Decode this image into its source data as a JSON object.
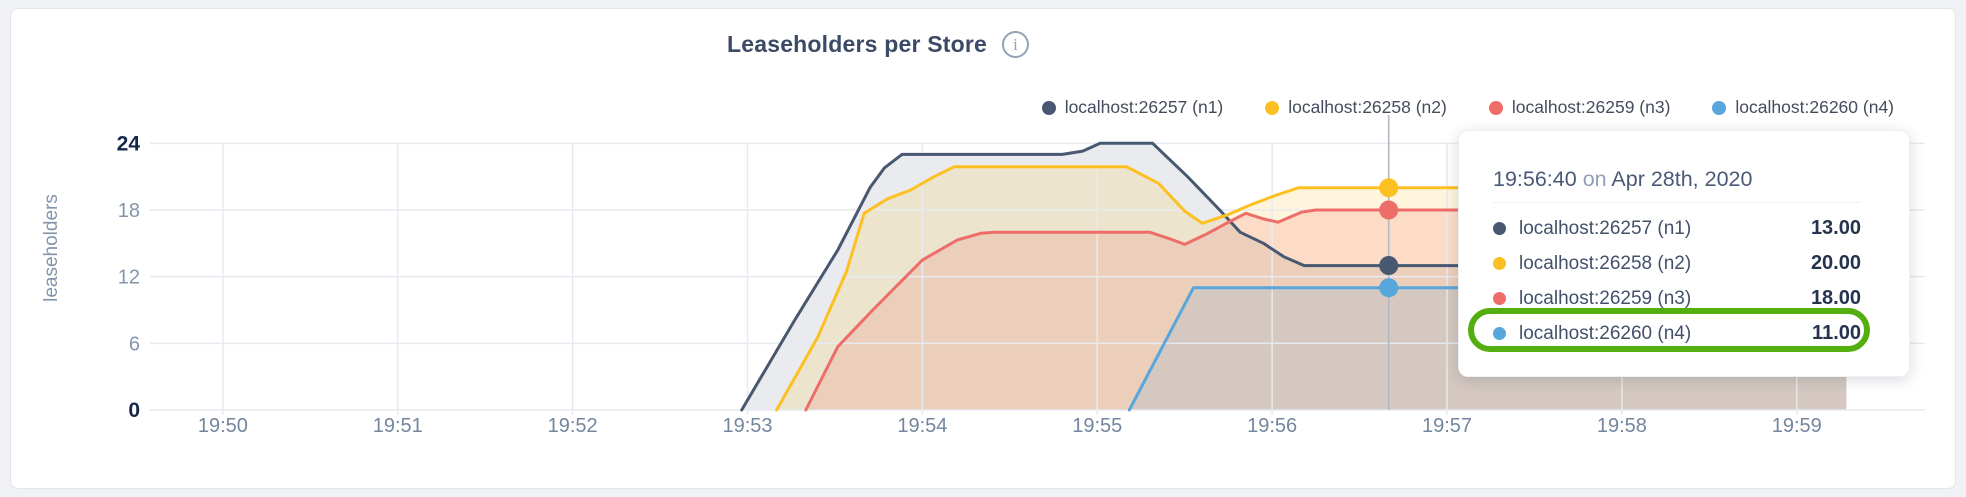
{
  "header": {
    "title": "Leaseholders per Store",
    "info_icon": "i"
  },
  "colors": {
    "n1": "#475870",
    "n2": "#fdc023",
    "n3": "#ee6d68",
    "n4": "#57a6dc",
    "grid": "#e7eaf0",
    "hover_line": "#b4b8c0",
    "highlight": "#54ae10"
  },
  "legend": [
    {
      "label": "localhost:26257 (n1)",
      "color": "#475870"
    },
    {
      "label": "localhost:26258 (n2)",
      "color": "#fdc023"
    },
    {
      "label": "localhost:26259 (n3)",
      "color": "#ee6d68"
    },
    {
      "label": "localhost:26260 (n4)",
      "color": "#57a6dc"
    }
  ],
  "tooltip": {
    "time": "19:56:40",
    "conjunction": "on",
    "date": "Apr 28th, 2020",
    "rows": [
      {
        "name": "localhost:26257 (n1)",
        "value": "13.00",
        "color": "#475870",
        "highlighted": false
      },
      {
        "name": "localhost:26258 (n2)",
        "value": "20.00",
        "color": "#fdc023",
        "highlighted": false
      },
      {
        "name": "localhost:26259 (n3)",
        "value": "18.00",
        "color": "#ee6d68",
        "highlighted": false
      },
      {
        "name": "localhost:26260 (n4)",
        "value": "11.00",
        "color": "#57a6dc",
        "highlighted": true
      }
    ]
  },
  "chart_data": {
    "type": "area",
    "title": "Leaseholders per Store",
    "ylabel": "leaseholders",
    "xlabel": "",
    "grid": true,
    "legend_position": "top-right",
    "x_unit": "seconds since 19:50:00",
    "x_domain": [
      -25,
      584
    ],
    "y_domain": [
      0,
      27
    ],
    "x_ticks": [
      {
        "t": 0,
        "label": "19:50"
      },
      {
        "t": 60,
        "label": "19:51"
      },
      {
        "t": 120,
        "label": "19:52"
      },
      {
        "t": 180,
        "label": "19:53"
      },
      {
        "t": 240,
        "label": "19:54"
      },
      {
        "t": 300,
        "label": "19:55"
      },
      {
        "t": 360,
        "label": "19:56"
      },
      {
        "t": 420,
        "label": "19:57"
      },
      {
        "t": 480,
        "label": "19:58"
      },
      {
        "t": 540,
        "label": "19:59"
      }
    ],
    "y_ticks": [
      {
        "v": 0,
        "label": "0",
        "strong": true
      },
      {
        "v": 6,
        "label": "6",
        "strong": false
      },
      {
        "v": 12,
        "label": "12",
        "strong": false
      },
      {
        "v": 18,
        "label": "18",
        "strong": false
      },
      {
        "v": 24,
        "label": "24",
        "strong": true
      }
    ],
    "hover": {
      "t": 400,
      "time_label": "19:56:40",
      "date_label": "Apr 28th, 2020"
    },
    "series": [
      {
        "name": "localhost:26257 (n1)",
        "color": "#475870",
        "fill_opacity": 0.12,
        "hover_value": 13,
        "points": [
          [
            178,
            0
          ],
          [
            196,
            8
          ],
          [
            211,
            14.4
          ],
          [
            222,
            20
          ],
          [
            227,
            21.8
          ],
          [
            233,
            23
          ],
          [
            288,
            23
          ],
          [
            295,
            23.3
          ],
          [
            301,
            24
          ],
          [
            319,
            24
          ],
          [
            331,
            21
          ],
          [
            342,
            18
          ],
          [
            349,
            16
          ],
          [
            357,
            15
          ],
          [
            364,
            13.8
          ],
          [
            371,
            13
          ],
          [
            557,
            13
          ]
        ]
      },
      {
        "name": "localhost:26258 (n2)",
        "color": "#fdc023",
        "fill_opacity": 0.16,
        "hover_value": 20,
        "points": [
          [
            190,
            0
          ],
          [
            204,
            6.5
          ],
          [
            214,
            12.5
          ],
          [
            220,
            17.7
          ],
          [
            228,
            19
          ],
          [
            236,
            19.8
          ],
          [
            244,
            21
          ],
          [
            251,
            21.9
          ],
          [
            310,
            21.9
          ],
          [
            321,
            20.4
          ],
          [
            330,
            17.9
          ],
          [
            336,
            16.8
          ],
          [
            345,
            17.6
          ],
          [
            353,
            18.5
          ],
          [
            361,
            19.3
          ],
          [
            369,
            20
          ],
          [
            557,
            20
          ]
        ]
      },
      {
        "name": "localhost:26259 (n3)",
        "color": "#ee6d68",
        "fill_opacity": 0.18,
        "hover_value": 18,
        "points": [
          [
            200,
            0
          ],
          [
            211,
            5.7
          ],
          [
            223,
            9
          ],
          [
            240,
            13.5
          ],
          [
            252,
            15.3
          ],
          [
            260,
            15.9
          ],
          [
            265,
            16
          ],
          [
            318,
            16
          ],
          [
            325,
            15.4
          ],
          [
            330,
            14.9
          ],
          [
            338,
            15.9
          ],
          [
            345,
            16.9
          ],
          [
            351,
            17.7
          ],
          [
            357,
            17.2
          ],
          [
            362,
            16.9
          ],
          [
            370,
            17.8
          ],
          [
            375,
            18
          ],
          [
            557,
            18
          ]
        ]
      },
      {
        "name": "localhost:26260 (n4)",
        "color": "#57a6dc",
        "fill_opacity": 0.16,
        "hover_value": 11,
        "points": [
          [
            311,
            0
          ],
          [
            333,
            11
          ],
          [
            557,
            11
          ]
        ]
      }
    ]
  }
}
